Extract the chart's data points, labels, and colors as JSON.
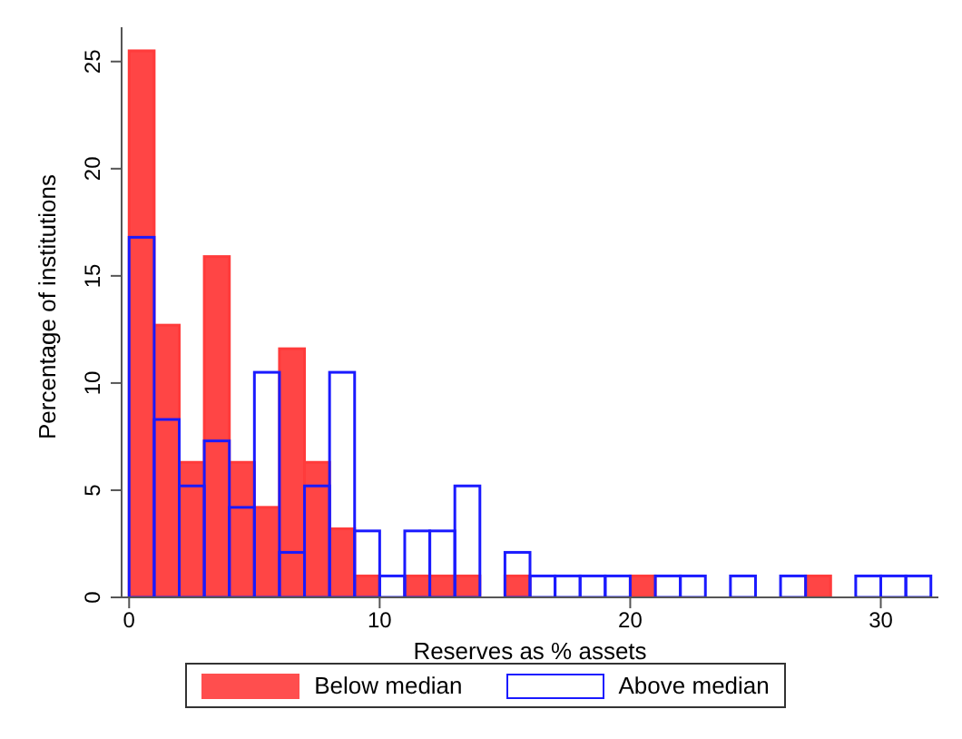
{
  "chart_data": {
    "type": "histogram",
    "xlabel": "Reserves as % assets",
    "ylabel": "Percentage of institutions",
    "bins": [
      0,
      1,
      2,
      3,
      4,
      5,
      6,
      7,
      8,
      9,
      10,
      11,
      12,
      13,
      14,
      15,
      16,
      17,
      18,
      19,
      20,
      21,
      22,
      23,
      24,
      25,
      26,
      27,
      28,
      29,
      30,
      31,
      32
    ],
    "series": [
      {
        "name": "Below median",
        "color": "#ff3b3b",
        "values": [
          25.5,
          12.7,
          6.3,
          15.9,
          6.3,
          4.2,
          11.6,
          6.3,
          3.2,
          1.0,
          0,
          1.0,
          1.0,
          1.0,
          0,
          1.0,
          0,
          0,
          0,
          0,
          1.0,
          0,
          0,
          0,
          0,
          0,
          0,
          1.0,
          0,
          0,
          0,
          0
        ]
      },
      {
        "name": "Above median",
        "color": "#1a1aff",
        "values": [
          16.8,
          8.3,
          5.2,
          7.3,
          4.2,
          10.5,
          2.1,
          5.2,
          10.5,
          3.1,
          1.0,
          3.1,
          3.1,
          5.2,
          0,
          2.1,
          1.0,
          1.0,
          1.0,
          1.0,
          0,
          1.0,
          1.0,
          0,
          1.0,
          0,
          1.0,
          0,
          0,
          1.0,
          1.0,
          1.0
        ]
      }
    ],
    "xlim": [
      -0.3,
      32.3
    ],
    "xticks": [
      0,
      10,
      20,
      30
    ],
    "ylim": [
      0,
      26.6
    ],
    "yticks": [
      0,
      5,
      10,
      15,
      20,
      25
    ],
    "grid": false,
    "legend": "bottom"
  }
}
